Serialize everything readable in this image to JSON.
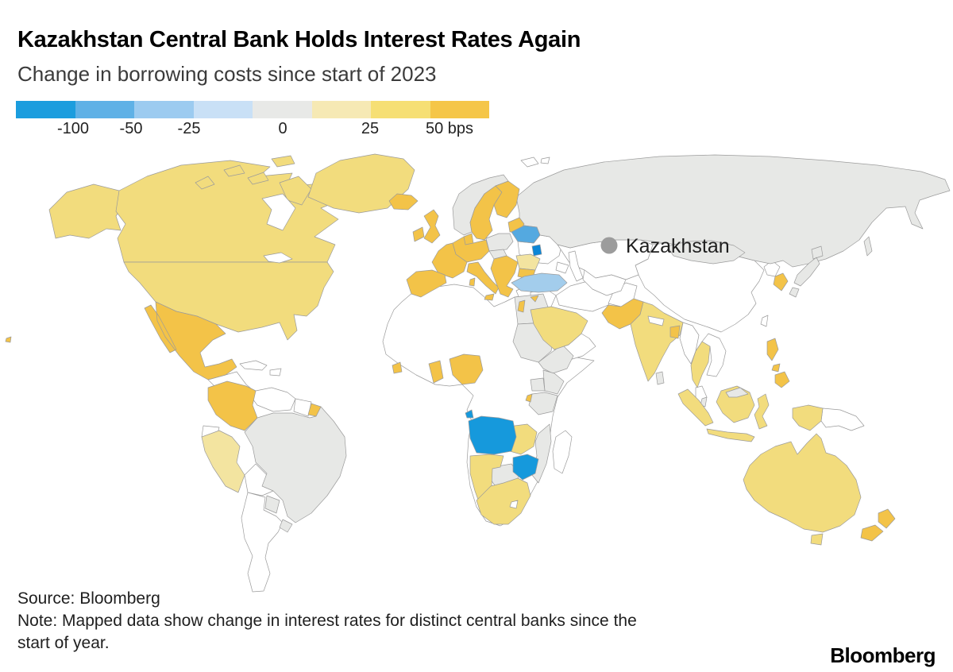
{
  "header": {
    "title": "Kazakhstan Central Bank Holds Interest Rates Again",
    "subtitle": "Change in borrowing costs since start of 2023"
  },
  "legend": {
    "labels": [
      "-100",
      "-50",
      "-25",
      "0",
      "25",
      "50 bps"
    ],
    "colors": [
      "#1B9DDE",
      "#5FB1E6",
      "#9CCBF0",
      "#C9E0F6",
      "#E8E9E7",
      "#F6E9B4",
      "#F6DF74",
      "#F5C648"
    ]
  },
  "map": {
    "annotation_label": "Kazakhstan",
    "colors": {
      "white": "#FFFFFF",
      "gray": "#E7E8E6",
      "yellow": "#F2DC7D",
      "pale_yellow": "#F3E4A0",
      "golden": "#F3C348",
      "light_blue": "#A3CDEC",
      "mid_blue": "#54A9E0",
      "blue": "#1699DC",
      "deep_blue": "#0C86D6",
      "marker": "#9C9C9C"
    }
  },
  "footer": {
    "source": "Source: Bloomberg",
    "note_line1": "Note: Mapped data show change in interest rates for distinct central banks since the",
    "note_line2": "start of year.",
    "logo": "Bloomberg"
  },
  "chart_data": {
    "type": "heatmap",
    "subtype": "choropleth-world-map",
    "title": "Kazakhstan Central Bank Holds Interest Rates Again",
    "subtitle": "Change in borrowing costs since start of 2023",
    "unit": "bps",
    "scale_ticks": [
      -100,
      -50,
      -25,
      0,
      25,
      50
    ],
    "scale_colors": [
      "#1B9DDE",
      "#5FB1E6",
      "#9CCBF0",
      "#C9E0F6",
      "#E8E9E7",
      "#F6E9B4",
      "#F6DF74",
      "#F5C648"
    ],
    "legend_position": "top-left",
    "annotation": {
      "country": "Kazakhstan",
      "marker": "gray-dot"
    },
    "regions_by_bucket": [
      {
        "bucket": "-100 bps or more",
        "color": "#1699DC",
        "countries": [
          "Angola",
          "Zimbabwe",
          "Moldova"
        ]
      },
      {
        "bucket": "about -50 bps",
        "color": "#54A9E0",
        "countries": [
          "Belarus"
        ]
      },
      {
        "bucket": "about -25 bps",
        "color": "#A3CDEC",
        "countries": [
          "Turkey"
        ]
      },
      {
        "bucket": "unchanged (0)",
        "color": "#E7E8E6",
        "countries": [
          "Russia",
          "Brazil",
          "Japan",
          "Norway",
          "Poland",
          "Mongolia",
          "Egypt",
          "Sudan",
          "Ethiopia",
          "Kenya",
          "Uganda",
          "Tanzania",
          "Mozambique",
          "Botswana",
          "Malaysia",
          "Sri Lanka",
          "Paraguay",
          "Uruguay"
        ]
      },
      {
        "bucket": "about +25 bps",
        "color": "#F3E4A0",
        "countries": [
          "Peru",
          "Romania"
        ]
      },
      {
        "bucket": "+25 to +50 bps",
        "color": "#F2DC7D",
        "countries": [
          "United States",
          "Canada",
          "Greenland",
          "Saudi Arabia",
          "India",
          "Thailand",
          "Indonesia",
          "Australia",
          "South Africa",
          "Namibia",
          "Zambia",
          "South Korea"
        ]
      },
      {
        "bucket": "+50 bps or more",
        "color": "#F3C348",
        "countries": [
          "Mexico",
          "Colombia",
          "United Kingdom",
          "Ireland",
          "Iceland",
          "France",
          "Spain",
          "Portugal",
          "Germany",
          "Italy",
          "Sweden",
          "Finland",
          "Denmark",
          "Greece",
          "Bulgaria",
          "Israel",
          "Nigeria",
          "Ghana",
          "Sierra Leone",
          "Pakistan",
          "Bangladesh",
          "Philippines",
          "New Zealand"
        ]
      },
      {
        "bucket": "no data / not shown (white)",
        "color": "#FFFFFF",
        "countries": [
          "Kazakhstan",
          "China",
          "Ukraine",
          "Iran",
          "Argentina",
          "Chile",
          "Venezuela",
          "Algeria",
          "Libya",
          "DR Congo",
          "Madagascar",
          "Myanmar",
          "Vietnam",
          "Papua New Guinea"
        ]
      }
    ]
  }
}
